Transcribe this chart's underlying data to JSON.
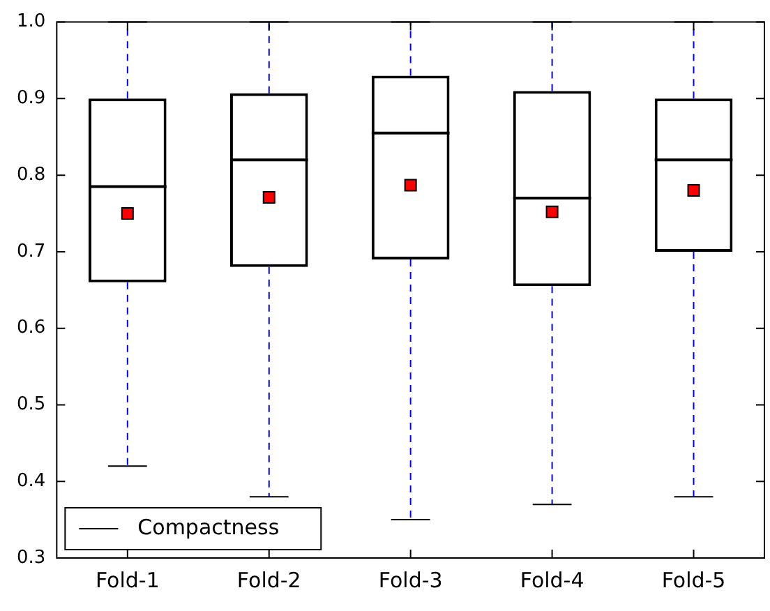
{
  "chart_data": {
    "type": "box",
    "categories": [
      "Fold-1",
      "Fold-2",
      "Fold-3",
      "Fold-4",
      "Fold-5"
    ],
    "series": [
      {
        "name": "Compactness",
        "color": "#000000",
        "boxes": [
          {
            "low": 0.42,
            "q1": 0.66,
            "median": 0.785,
            "q3": 0.9,
            "high": 1.0,
            "mean": 0.75
          },
          {
            "low": 0.38,
            "q1": 0.68,
            "median": 0.82,
            "q3": 0.907,
            "high": 1.0,
            "mean": 0.771
          },
          {
            "low": 0.35,
            "q1": 0.69,
            "median": 0.855,
            "q3": 0.93,
            "high": 1.0,
            "mean": 0.787
          },
          {
            "low": 0.37,
            "q1": 0.655,
            "median": 0.77,
            "q3": 0.91,
            "high": 1.0,
            "mean": 0.752
          },
          {
            "low": 0.38,
            "q1": 0.7,
            "median": 0.82,
            "q3": 0.9,
            "high": 1.0,
            "mean": 0.78
          }
        ]
      }
    ],
    "ylim": [
      0.3,
      1.0
    ],
    "yticks": [
      0.3,
      0.4,
      0.5,
      0.6,
      0.7,
      0.8,
      0.9,
      {
        "value": 1,
        "label": "1.0"
      }
    ],
    "grid": false,
    "legend": "bottom left"
  }
}
